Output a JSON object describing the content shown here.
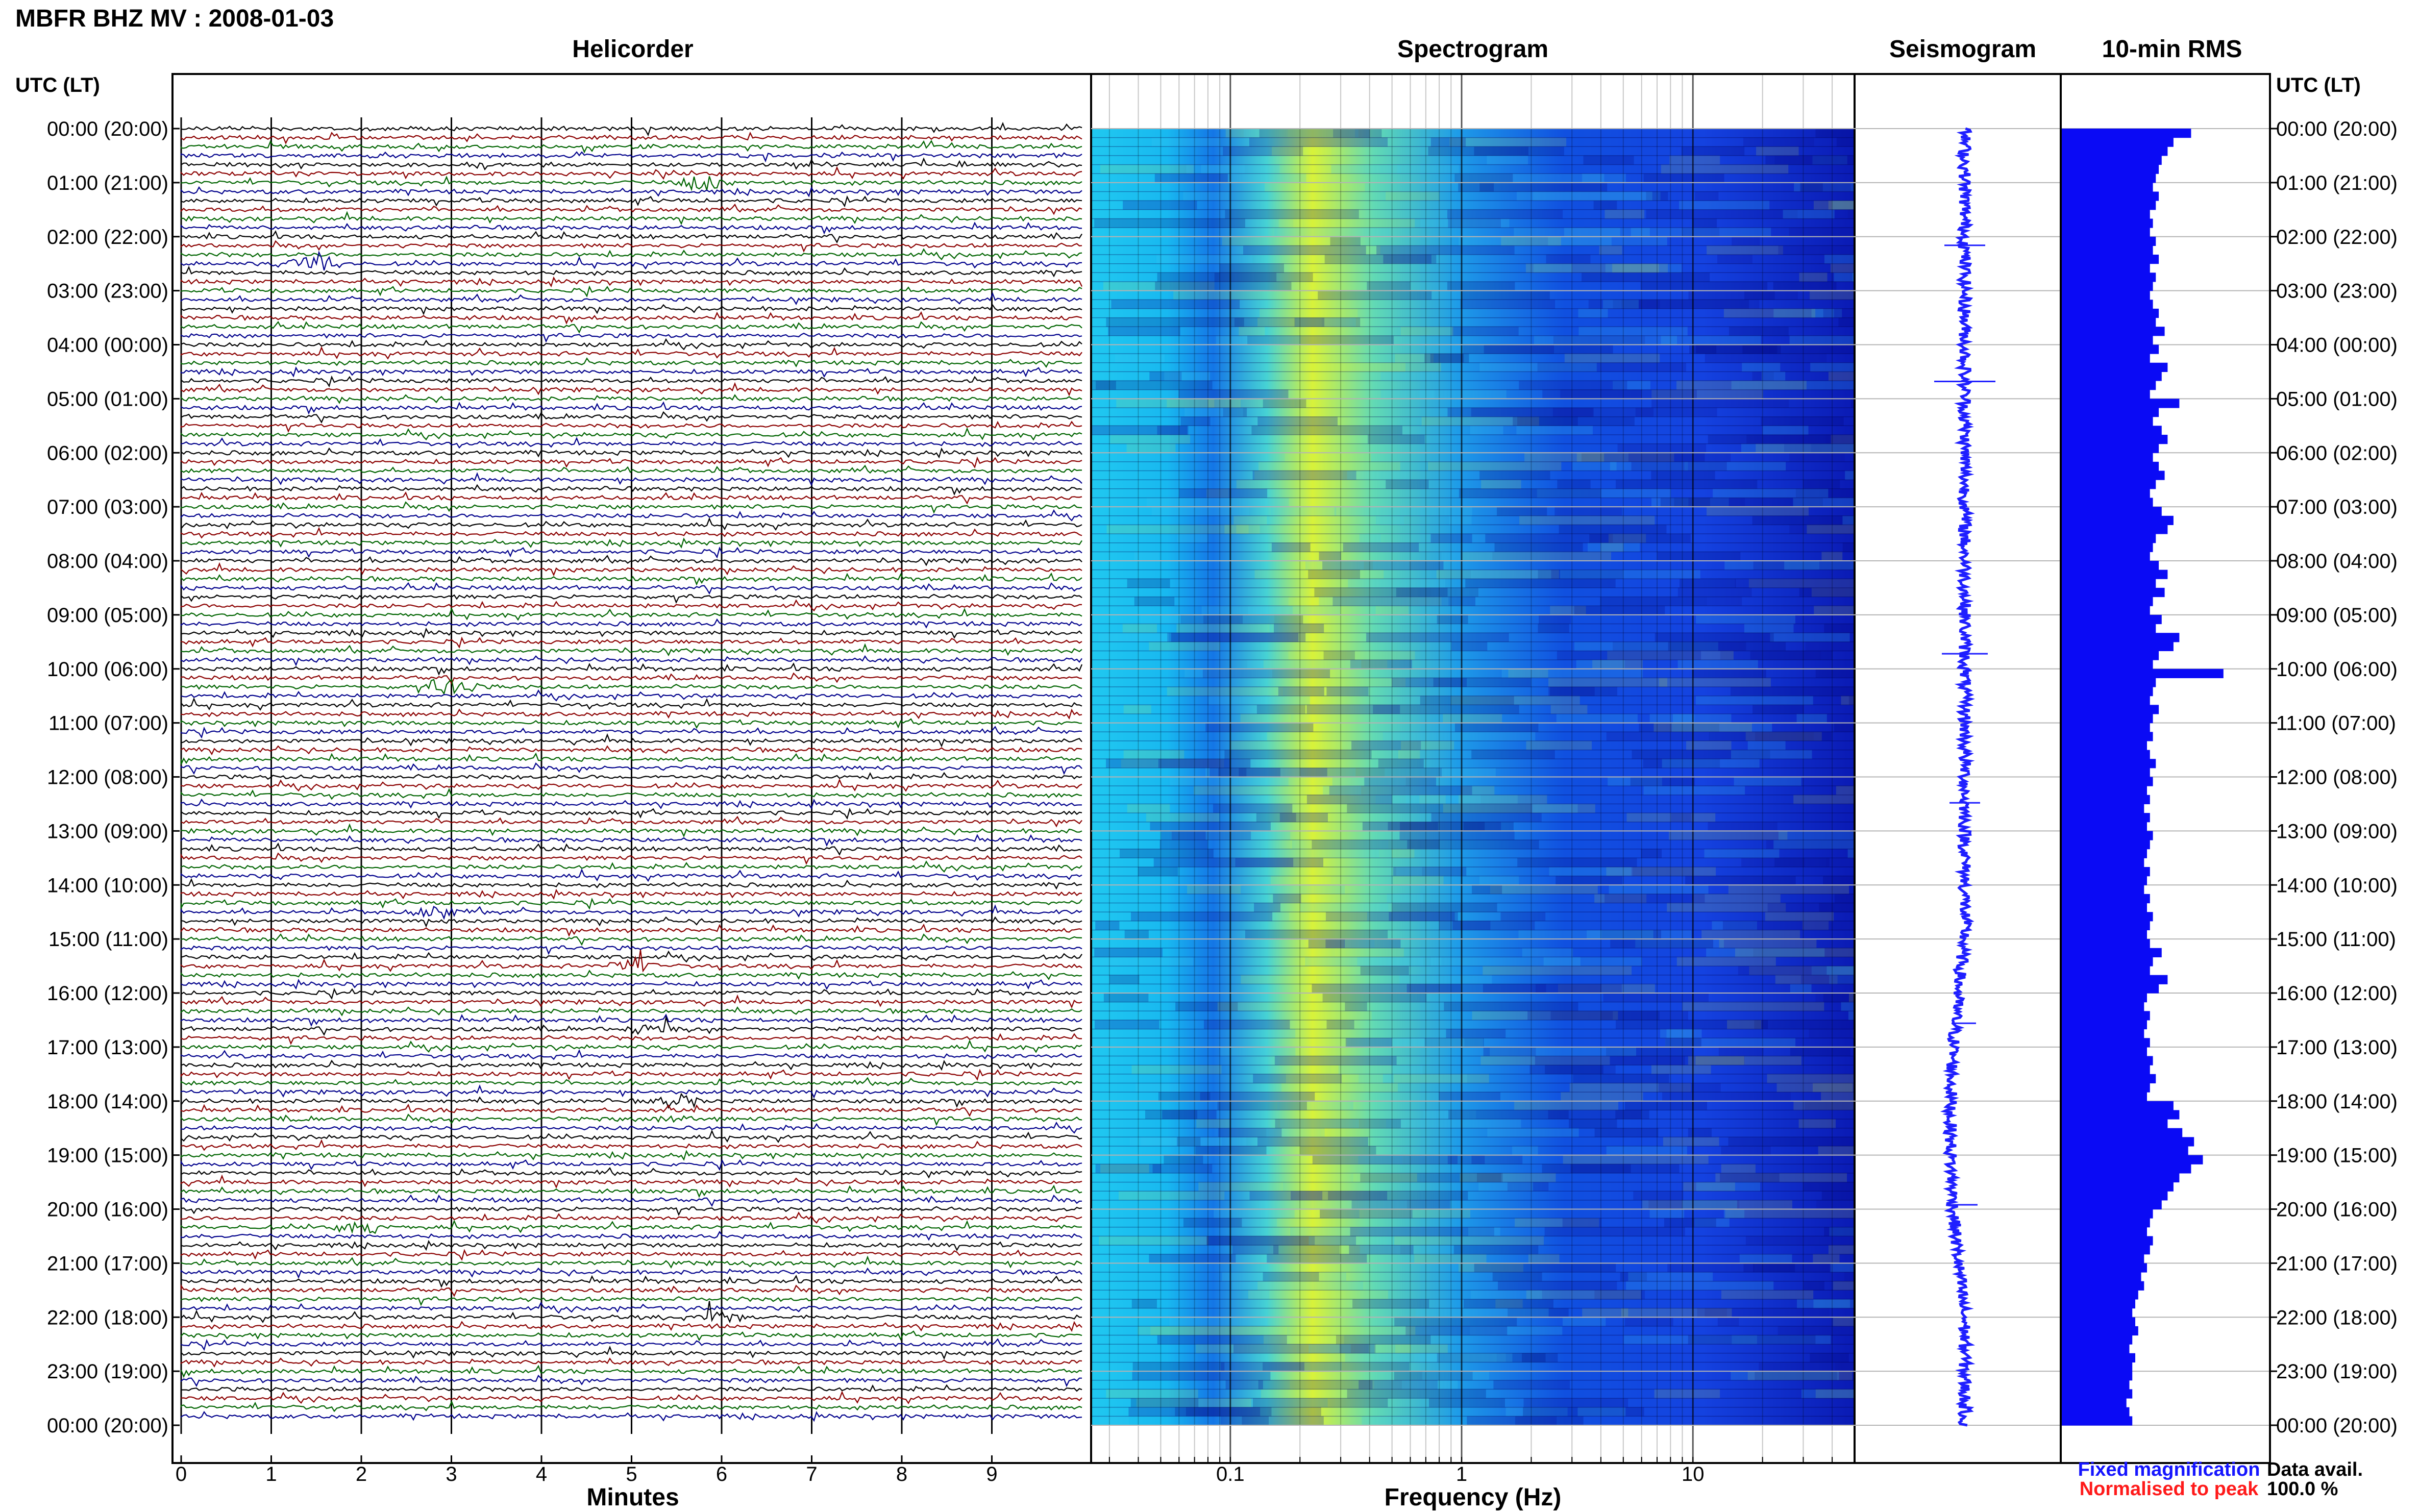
{
  "title": "MBFR BHZ MV : 2008-01-03",
  "axis_header": "UTC (LT)",
  "panels": {
    "helicorder": "Helicorder",
    "spectrogram": "Spectrogram",
    "seismogram": "Seismogram",
    "rms": "10-min RMS"
  },
  "xlabels": {
    "helicorder": "Minutes",
    "spectrogram": "Frequency (Hz)"
  },
  "legend": {
    "fixed": "Fixed magnification",
    "normalised": "Normalised to peak",
    "fixed_color": "#1515ff",
    "normalised_color": "#ff1a1a"
  },
  "data_avail": {
    "label": "Data avail.",
    "value": "100.0 %"
  },
  "colors": {
    "trace_cycle": [
      "#000000",
      "#8b0000",
      "#006400",
      "#00008b"
    ],
    "seismogram": "#1f1fff",
    "rms": "#0a0af5",
    "spectrogram_low": "#0a1ab4",
    "spectrogram_high": "#e6f52a"
  },
  "chart_data": {
    "type": "heatmap",
    "rows_per_hour": 6,
    "time_labels": [
      "00:00 (20:00)",
      "01:00 (21:00)",
      "02:00 (22:00)",
      "03:00 (23:00)",
      "04:00 (00:00)",
      "05:00 (01:00)",
      "06:00 (02:00)",
      "07:00 (03:00)",
      "08:00 (04:00)",
      "09:00 (05:00)",
      "10:00 (06:00)",
      "11:00 (07:00)",
      "12:00 (08:00)",
      "13:00 (09:00)",
      "14:00 (10:00)",
      "15:00 (11:00)",
      "16:00 (12:00)",
      "17:00 (13:00)",
      "18:00 (14:00)",
      "19:00 (15:00)",
      "20:00 (16:00)",
      "21:00 (17:00)",
      "22:00 (18:00)",
      "23:00 (19:00)",
      "00:00 (20:00)"
    ],
    "helicorder": {
      "x_ticks": [
        0,
        1,
        2,
        3,
        4,
        5,
        6,
        7,
        8,
        9
      ],
      "xlim": [
        0,
        10
      ],
      "xlabel": "Minutes"
    },
    "spectrogram": {
      "x_ticks": [
        "0.1",
        "1",
        "10"
      ],
      "x_tick_values": [
        0.1,
        1,
        10
      ],
      "xlim": [
        0.025,
        50
      ],
      "xscale": "log",
      "xlabel": "Frequency (Hz)",
      "peak_frequency_hz": 0.25
    },
    "rms": {
      "values": [
        0.44,
        0.38,
        0.36,
        0.34,
        0.33,
        0.32,
        0.31,
        0.33,
        0.32,
        0.3,
        0.31,
        0.3,
        0.32,
        0.31,
        0.33,
        0.3,
        0.32,
        0.31,
        0.3,
        0.31,
        0.33,
        0.32,
        0.35,
        0.31,
        0.33,
        0.3,
        0.36,
        0.34,
        0.32,
        0.3,
        0.4,
        0.33,
        0.31,
        0.34,
        0.36,
        0.33,
        0.31,
        0.33,
        0.35,
        0.32,
        0.3,
        0.31,
        0.34,
        0.38,
        0.36,
        0.32,
        0.31,
        0.3,
        0.33,
        0.36,
        0.32,
        0.35,
        0.31,
        0.3,
        0.34,
        0.32,
        0.4,
        0.38,
        0.33,
        0.31,
        0.55,
        0.32,
        0.31,
        0.3,
        0.33,
        0.31,
        0.3,
        0.31,
        0.29,
        0.3,
        0.32,
        0.3,
        0.31,
        0.29,
        0.3,
        0.28,
        0.3,
        0.29,
        0.31,
        0.3,
        0.29,
        0.28,
        0.3,
        0.29,
        0.28,
        0.3,
        0.29,
        0.31,
        0.3,
        0.29,
        0.3,
        0.34,
        0.31,
        0.3,
        0.36,
        0.33,
        0.29,
        0.28,
        0.3,
        0.29,
        0.28,
        0.3,
        0.29,
        0.31,
        0.3,
        0.32,
        0.3,
        0.29,
        0.38,
        0.4,
        0.36,
        0.41,
        0.45,
        0.43,
        0.48,
        0.44,
        0.4,
        0.38,
        0.36,
        0.34,
        0.31,
        0.3,
        0.29,
        0.31,
        0.3,
        0.28,
        0.29,
        0.27,
        0.28,
        0.26,
        0.25,
        0.24,
        0.25,
        0.26,
        0.24,
        0.23,
        0.25,
        0.24,
        0.24,
        0.23,
        0.24,
        0.22,
        0.23,
        0.24
      ],
      "xlim": [
        0,
        1
      ]
    }
  }
}
